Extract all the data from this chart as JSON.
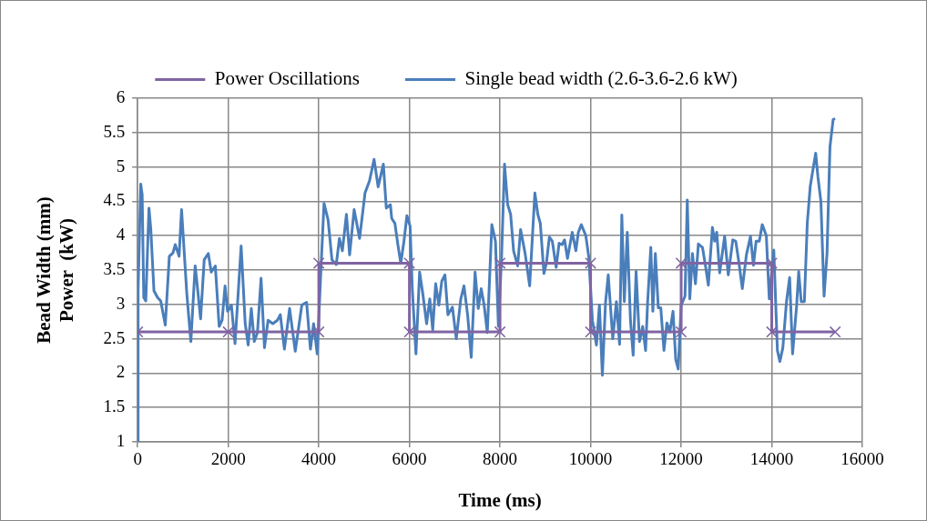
{
  "chart_data": {
    "type": "line",
    "xlabel": "Time (ms)",
    "ylabel": "Bead Width (mm)\nPower  (kW)",
    "xlim": [
      0,
      16000
    ],
    "xticks": [
      0,
      2000,
      4000,
      6000,
      8000,
      10000,
      12000,
      14000,
      16000
    ],
    "ylim": [
      1,
      6
    ],
    "yticks": [
      1,
      1.5,
      2,
      2.5,
      3,
      3.5,
      4,
      4.5,
      5,
      5.5,
      6
    ],
    "grid": true,
    "legend": "top",
    "line_style": "solid",
    "series": [
      {
        "name": "Power Oscillations",
        "color": "#8064a2",
        "marker": "cross",
        "x": [
          0,
          2000,
          4000,
          4000,
          6000,
          6000,
          8000,
          8000,
          10000,
          10000,
          12000,
          12000,
          14000,
          14000,
          15400
        ],
        "values": [
          2.6,
          2.6,
          2.6,
          3.6,
          3.6,
          2.6,
          2.6,
          3.6,
          3.6,
          2.6,
          2.6,
          3.6,
          3.6,
          2.6,
          2.6
        ]
      },
      {
        "name": "Single bead width (2.6-3.6-2.6 kW)",
        "color": "#4a7ebb",
        "marker": "none",
        "x": [
          0,
          10,
          68,
          100,
          135,
          180,
          250,
          290,
          360,
          440,
          510,
          610,
          700,
          780,
          830,
          915,
          970,
          1085,
          1175,
          1270,
          1320,
          1390,
          1470,
          1560,
          1625,
          1715,
          1800,
          1865,
          1930,
          1985,
          2070,
          2150,
          2285,
          2375,
          2440,
          2510,
          2575,
          2645,
          2725,
          2800,
          2880,
          2985,
          3085,
          3150,
          3240,
          3355,
          3480,
          3625,
          3730,
          3815,
          3885,
          3965,
          4050,
          4115,
          4205,
          4290,
          4385,
          4455,
          4520,
          4610,
          4680,
          4780,
          4900,
          5020,
          5120,
          5220,
          5310,
          5425,
          5490,
          5580,
          5610,
          5680,
          5745,
          5810,
          5880,
          5945,
          6015,
          6065,
          6145,
          6225,
          6295,
          6380,
          6450,
          6515,
          6580,
          6650,
          6715,
          6785,
          6850,
          6950,
          7035,
          7135,
          7205,
          7285,
          7365,
          7450,
          7520,
          7585,
          7650,
          7720,
          7820,
          7900,
          7965,
          8035,
          8100,
          8170,
          8235,
          8300,
          8390,
          8455,
          8555,
          8655,
          8770,
          8835,
          8890,
          8970,
          9025,
          9090,
          9155,
          9240,
          9305,
          9370,
          9425,
          9490,
          9595,
          9675,
          9730,
          9795,
          9895,
          9960,
          10040,
          10130,
          10195,
          10260,
          10330,
          10390,
          10490,
          10570,
          10640,
          10690,
          10745,
          10810,
          10880,
          10940,
          11005,
          11080,
          11150,
          11215,
          11260,
          11330,
          11375,
          11430,
          11495,
          11550,
          11620,
          11685,
          11750,
          11820,
          11880,
          11935,
          12000,
          12085,
          12135,
          12190,
          12250,
          12315,
          12380,
          12470,
          12535,
          12600,
          12690,
          12740,
          12785,
          12850,
          12960,
          13040,
          13140,
          13205,
          13275,
          13350,
          13440,
          13530,
          13595,
          13655,
          13725,
          13790,
          13880,
          13945,
          14045,
          14125,
          14180,
          14245,
          14325,
          14395,
          14460,
          14550,
          14595,
          14650,
          14720,
          14785,
          14850,
          14920,
          14970,
          15020,
          15085,
          15155,
          15220,
          15285,
          15355,
          15400
        ],
        "values": [
          1.0,
          3.2,
          4.75,
          4.6,
          3.1,
          3.05,
          4.4,
          4.1,
          3.2,
          3.1,
          3.05,
          2.7,
          3.7,
          3.75,
          3.87,
          3.7,
          4.38,
          3.16,
          2.46,
          3.56,
          3.25,
          2.79,
          3.65,
          3.74,
          3.47,
          3.56,
          2.68,
          2.77,
          3.27,
          2.9,
          2.99,
          2.43,
          3.85,
          2.72,
          2.41,
          2.94,
          2.46,
          2.59,
          3.38,
          2.37,
          2.77,
          2.72,
          2.77,
          2.85,
          2.35,
          2.94,
          2.32,
          2.99,
          3.03,
          2.35,
          2.72,
          2.28,
          3.56,
          4.47,
          4.23,
          3.65,
          3.58,
          3.96,
          3.78,
          4.31,
          3.72,
          4.38,
          3.96,
          4.62,
          4.8,
          5.11,
          4.71,
          5.04,
          4.4,
          4.45,
          4.25,
          4.18,
          3.87,
          3.6,
          3.92,
          4.29,
          4.14,
          3.21,
          2.28,
          3.47,
          3.16,
          2.72,
          3.08,
          2.63,
          3.3,
          2.99,
          3.34,
          3.43,
          2.85,
          2.96,
          2.5,
          3.08,
          3.27,
          2.85,
          2.23,
          3.47,
          2.94,
          3.23,
          2.99,
          2.59,
          4.16,
          3.92,
          2.68,
          3.69,
          5.04,
          4.45,
          4.31,
          3.78,
          3.56,
          4.09,
          3.74,
          3.27,
          4.62,
          4.31,
          4.18,
          3.45,
          3.6,
          3.98,
          3.92,
          3.54,
          3.89,
          3.87,
          3.94,
          3.67,
          4.05,
          3.78,
          4.05,
          4.16,
          4.0,
          3.69,
          2.77,
          2.41,
          2.99,
          1.97,
          3.03,
          3.43,
          2.5,
          3.04,
          2.42,
          4.3,
          3.04,
          4.05,
          2.77,
          2.26,
          3.48,
          2.46,
          2.68,
          2.33,
          3.04,
          3.83,
          2.9,
          3.74,
          2.95,
          2.95,
          2.33,
          2.73,
          2.6,
          2.9,
          2.2,
          2.06,
          2.99,
          3.12,
          4.52,
          3.08,
          3.74,
          3.3,
          3.88,
          3.83,
          3.57,
          3.28,
          4.12,
          3.92,
          4.05,
          3.46,
          3.99,
          3.43,
          3.94,
          3.92,
          3.61,
          3.23,
          3.72,
          3.99,
          3.57,
          3.92,
          3.92,
          4.16,
          4.0,
          3.08,
          3.79,
          2.33,
          2.17,
          2.37,
          3.04,
          3.39,
          2.28,
          2.99,
          3.48,
          3.04,
          3.04,
          4.19,
          4.72,
          5.0,
          5.2,
          4.85,
          4.5,
          3.12,
          3.74,
          5.29,
          5.69,
          5.7
        ]
      }
    ]
  }
}
